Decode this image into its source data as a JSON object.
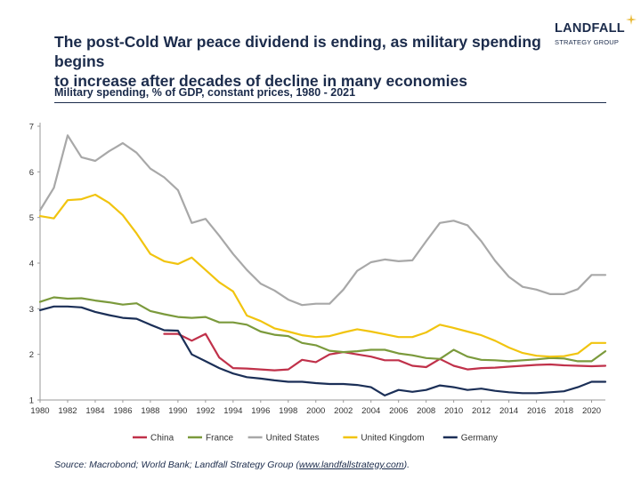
{
  "header": {
    "headline_line1": "The post-Cold War peace dividend is ending, as military spending begins",
    "headline_line2": "to increase after decades of decline in many economies",
    "subtitle": "Military spending, % of GDP, constant prices, 1980 - 2021"
  },
  "logo": {
    "name": "LANDFALL",
    "tagline": "STRATEGY GROUP",
    "accent_color": "#e8b936",
    "icon": "sparkle-star-icon"
  },
  "source": {
    "prefix": "Source: Macrobond; World Bank; Landfall Strategy Group (",
    "link": "www.landfallstrategy.com",
    "suffix": ")."
  },
  "chart_data": {
    "type": "line",
    "title": "Military spending, % of GDP, constant prices, 1980 - 2021",
    "xlabel": "",
    "ylabel": "",
    "xlim": [
      1980,
      2021
    ],
    "ylim": [
      1,
      7
    ],
    "x_ticks": [
      1980,
      1982,
      1984,
      1986,
      1988,
      1990,
      1992,
      1994,
      1996,
      1998,
      2000,
      2002,
      2004,
      2006,
      2008,
      2010,
      2012,
      2014,
      2016,
      2018,
      2020
    ],
    "y_ticks": [
      1,
      2,
      3,
      4,
      5,
      6,
      7
    ],
    "grid": false,
    "legend_position": "bottom",
    "series": [
      {
        "name": "China",
        "color": "#c0314a",
        "x": [
          1989,
          1990,
          1991,
          1992,
          1993,
          1994,
          1995,
          1996,
          1997,
          1998,
          1999,
          2000,
          2001,
          2002,
          2003,
          2004,
          2005,
          2006,
          2007,
          2008,
          2009,
          2010,
          2011,
          2012,
          2013,
          2014,
          2015,
          2016,
          2017,
          2018,
          2019,
          2020,
          2021
        ],
        "y": [
          2.45,
          2.45,
          2.3,
          2.45,
          1.93,
          1.7,
          1.69,
          1.67,
          1.65,
          1.67,
          1.88,
          1.83,
          2.0,
          2.05,
          2.0,
          1.95,
          1.87,
          1.87,
          1.75,
          1.72,
          1.9,
          1.75,
          1.67,
          1.7,
          1.71,
          1.73,
          1.75,
          1.77,
          1.78,
          1.76,
          1.75,
          1.74,
          1.75
        ]
      },
      {
        "name": "France",
        "color": "#7b9a3c",
        "x": [
          1980,
          1981,
          1982,
          1983,
          1984,
          1985,
          1986,
          1987,
          1988,
          1989,
          1990,
          1991,
          1992,
          1993,
          1994,
          1995,
          1996,
          1997,
          1998,
          1999,
          2000,
          2001,
          2002,
          2003,
          2004,
          2005,
          2006,
          2007,
          2008,
          2009,
          2010,
          2011,
          2012,
          2013,
          2014,
          2015,
          2016,
          2017,
          2018,
          2019,
          2020,
          2021
        ],
        "y": [
          3.15,
          3.25,
          3.22,
          3.23,
          3.18,
          3.14,
          3.09,
          3.12,
          2.95,
          2.88,
          2.82,
          2.8,
          2.82,
          2.7,
          2.7,
          2.65,
          2.5,
          2.43,
          2.4,
          2.25,
          2.2,
          2.08,
          2.05,
          2.07,
          2.1,
          2.1,
          2.02,
          1.98,
          1.92,
          1.9,
          2.1,
          1.95,
          1.88,
          1.87,
          1.85,
          1.87,
          1.89,
          1.92,
          1.91,
          1.85,
          1.85,
          2.07
        ]
      },
      {
        "name": "United States",
        "color": "#a8a8a8",
        "x": [
          1980,
          1981,
          1982,
          1983,
          1984,
          1985,
          1986,
          1987,
          1988,
          1989,
          1990,
          1991,
          1992,
          1993,
          1994,
          1995,
          1996,
          1997,
          1998,
          1999,
          2000,
          2001,
          2002,
          2003,
          2004,
          2005,
          2006,
          2007,
          2008,
          2009,
          2010,
          2011,
          2012,
          2013,
          2014,
          2015,
          2016,
          2017,
          2018,
          2019,
          2020,
          2021
        ],
        "y": [
          5.16,
          5.65,
          6.8,
          6.32,
          6.24,
          6.45,
          6.63,
          6.42,
          6.07,
          5.88,
          5.6,
          4.88,
          4.97,
          4.6,
          4.2,
          3.85,
          3.55,
          3.4,
          3.2,
          3.08,
          3.11,
          3.11,
          3.42,
          3.83,
          4.02,
          4.08,
          4.04,
          4.06,
          4.48,
          4.88,
          4.93,
          4.83,
          4.48,
          4.05,
          3.7,
          3.48,
          3.42,
          3.32,
          3.32,
          3.43,
          3.74,
          3.74
        ]
      },
      {
        "name": "United Kingdom",
        "color": "#f1c40f",
        "x": [
          1980,
          1981,
          1982,
          1983,
          1984,
          1985,
          1986,
          1987,
          1988,
          1989,
          1990,
          1991,
          1992,
          1993,
          1994,
          1995,
          1996,
          1997,
          1998,
          1999,
          2000,
          2001,
          2002,
          2003,
          2004,
          2005,
          2006,
          2007,
          2008,
          2009,
          2010,
          2011,
          2012,
          2013,
          2014,
          2015,
          2016,
          2017,
          2018,
          2019,
          2020,
          2021
        ],
        "y": [
          5.03,
          4.98,
          5.38,
          5.4,
          5.5,
          5.32,
          5.05,
          4.65,
          4.2,
          4.04,
          3.98,
          4.12,
          3.85,
          3.58,
          3.38,
          2.85,
          2.73,
          2.57,
          2.5,
          2.42,
          2.38,
          2.4,
          2.48,
          2.55,
          2.5,
          2.44,
          2.38,
          2.38,
          2.48,
          2.65,
          2.58,
          2.5,
          2.42,
          2.3,
          2.15,
          2.03,
          1.97,
          1.95,
          1.96,
          2.02,
          2.25,
          2.25
        ]
      },
      {
        "name": "Germany",
        "color": "#1b2f57",
        "x": [
          1980,
          1981,
          1982,
          1983,
          1984,
          1985,
          1986,
          1987,
          1988,
          1989,
          1990,
          1991,
          1992,
          1993,
          1994,
          1995,
          1996,
          1997,
          1998,
          1999,
          2000,
          2001,
          2002,
          2003,
          2004,
          2005,
          2006,
          2007,
          2008,
          2009,
          2010,
          2011,
          2012,
          2013,
          2014,
          2015,
          2016,
          2017,
          2018,
          2019,
          2020,
          2021
        ],
        "y": [
          2.97,
          3.05,
          3.05,
          3.03,
          2.93,
          2.86,
          2.8,
          2.78,
          2.65,
          2.53,
          2.52,
          2.0,
          1.85,
          1.7,
          1.58,
          1.5,
          1.47,
          1.43,
          1.4,
          1.4,
          1.37,
          1.35,
          1.35,
          1.33,
          1.28,
          1.1,
          1.22,
          1.18,
          1.22,
          1.32,
          1.28,
          1.22,
          1.25,
          1.2,
          1.17,
          1.15,
          1.15,
          1.17,
          1.19,
          1.28,
          1.4,
          1.4
        ]
      }
    ]
  }
}
